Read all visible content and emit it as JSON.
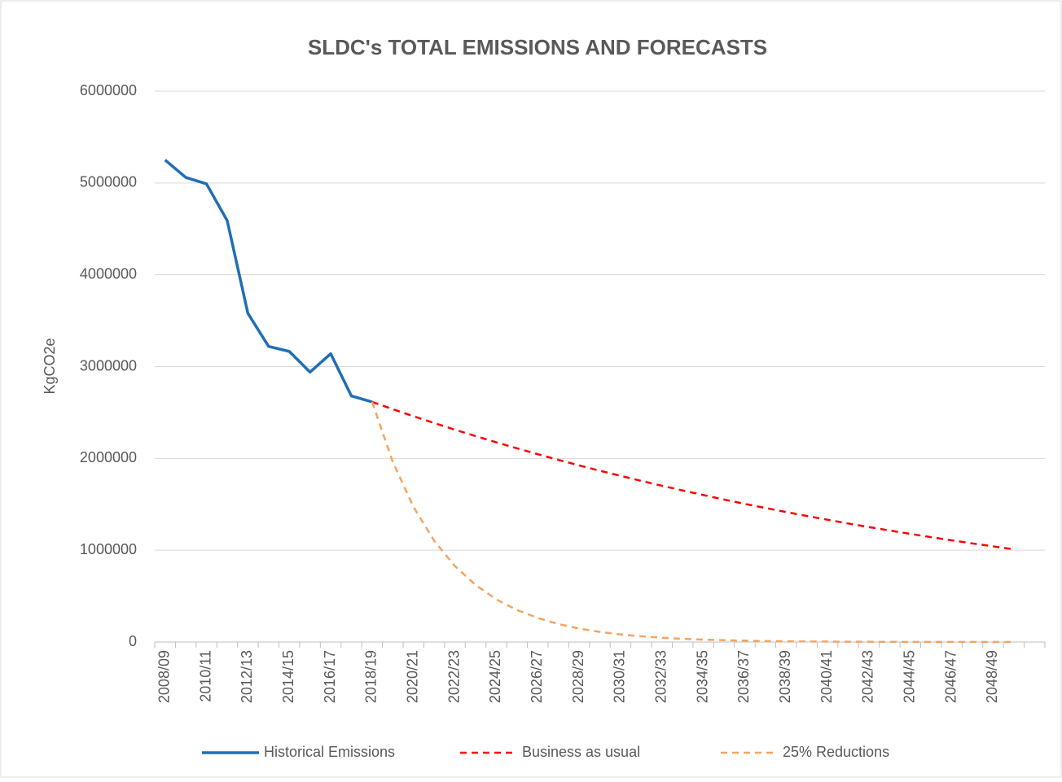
{
  "chart_data": {
    "type": "line",
    "title": "SLDC's TOTAL EMISSIONS AND FORECASTS",
    "y_label": "KgCO2e",
    "categories": [
      "2008/09",
      null,
      "2010/11",
      null,
      "2012/13",
      null,
      "2014/15",
      null,
      "2016/17",
      null,
      "2018/19",
      null,
      "2020/21",
      null,
      "2022/23",
      null,
      "2024/25",
      null,
      "2026/27",
      null,
      "2028/29",
      null,
      "2030/31",
      null,
      "2032/33",
      null,
      "2034/35",
      null,
      "2036/37",
      null,
      "2038/39",
      null,
      "2040/41",
      null,
      "2042/43",
      null,
      "2044/45",
      null,
      "2046/47",
      null,
      "2048/49",
      null,
      null
    ],
    "series": [
      {
        "name": "Historical Emissions",
        "color": "#1f6fb5",
        "dashed": false,
        "values": [
          5250000,
          5060000,
          4990000,
          4590000,
          3580000,
          3220000,
          3165000,
          2940000,
          3140000,
          2680000,
          2615000,
          null,
          null,
          null,
          null,
          null,
          null,
          null,
          null,
          null,
          null,
          null,
          null,
          null,
          null,
          null,
          null,
          null,
          null,
          null,
          null,
          null,
          null,
          null,
          null,
          null,
          null,
          null,
          null,
          null,
          null,
          null,
          null
        ]
      },
      {
        "name": "Business as usual",
        "color": "#ff0000",
        "dashed": true,
        "values": [
          null,
          null,
          null,
          null,
          null,
          null,
          null,
          null,
          null,
          null,
          2615000,
          2536000,
          2459000,
          2385000,
          2313000,
          2243000,
          2175000,
          2110000,
          2046000,
          1984000,
          1924000,
          1866000,
          1810000,
          1755000,
          1702000,
          1651000,
          1601000,
          1552000,
          1505000,
          1460000,
          1416000,
          1373000,
          1332000,
          1291000,
          1252000,
          1215000,
          1178000,
          1142000,
          1108000,
          1074000,
          1042000,
          1010000,
          null
        ]
      },
      {
        "name": "25% Reductions",
        "color": "#f4a460",
        "dashed": true,
        "values": [
          null,
          null,
          null,
          null,
          null,
          null,
          null,
          null,
          null,
          null,
          2615000,
          1961000,
          1471000,
          1103000,
          827000,
          621000,
          465000,
          349000,
          262000,
          196000,
          147000,
          110000,
          83000,
          62000,
          47000,
          35000,
          26000,
          20000,
          15000,
          11000,
          8000,
          6000,
          5000,
          3000,
          3000,
          2000,
          1000,
          1000,
          1000,
          1000,
          1000,
          0,
          null
        ]
      }
    ],
    "ylim": [
      0,
      6000000
    ],
    "yticks": [
      0,
      1000000,
      2000000,
      3000000,
      4000000,
      5000000,
      6000000
    ],
    "grid": true,
    "legend": "bottom"
  }
}
